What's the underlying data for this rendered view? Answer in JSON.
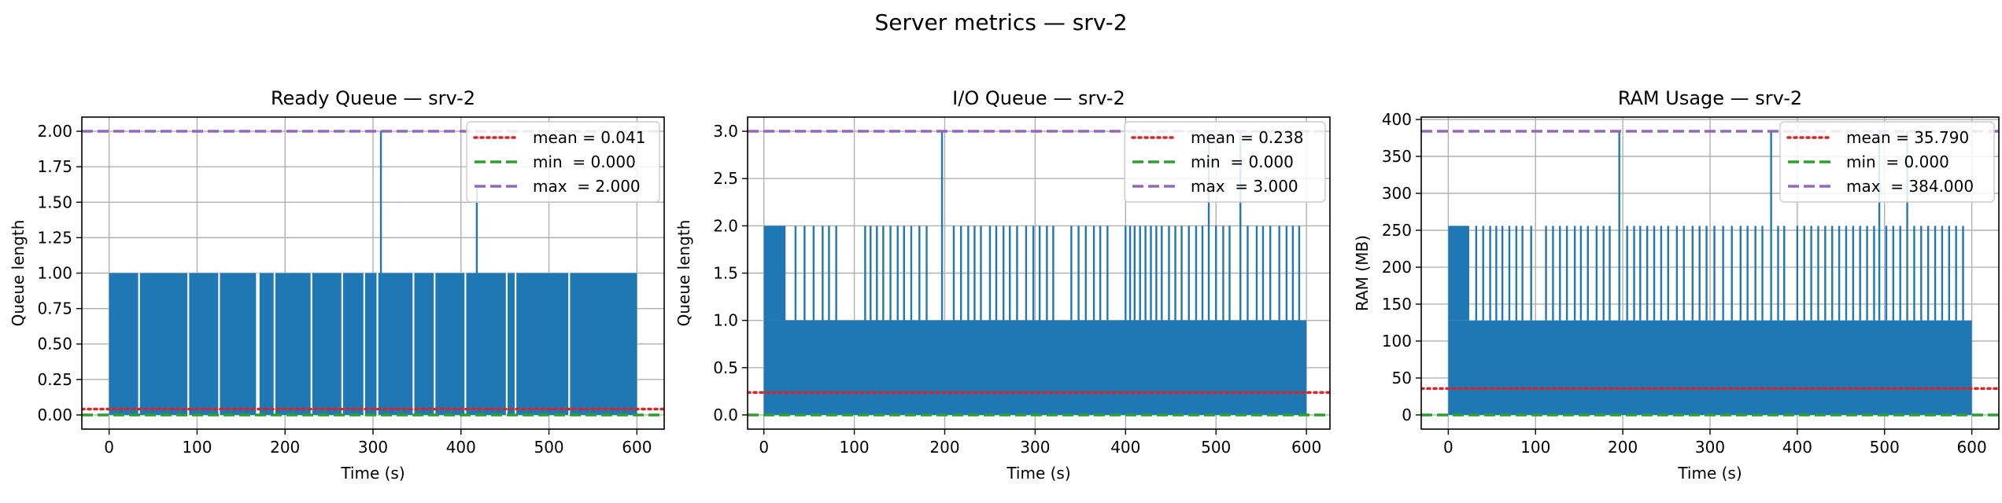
{
  "figure": {
    "title": "Server metrics — srv-2"
  },
  "colors": {
    "signal": "#1f77b4",
    "mean": "#d62728",
    "min": "#2ca02c",
    "max": "#9467bd",
    "grid": "#b0b0b0"
  },
  "chart_data": [
    {
      "type": "line",
      "title": "Ready Queue — srv-2",
      "xlabel": "Time (s)",
      "ylabel": "Queue length",
      "xlim": [
        -31,
        631
      ],
      "ylim": [
        -0.1,
        2.1
      ],
      "xticks": [
        0,
        100,
        200,
        300,
        400,
        500,
        600
      ],
      "xtick_labels": [
        "0",
        "100",
        "200",
        "300",
        "400",
        "500",
        "600"
      ],
      "yticks": [
        0,
        0.25,
        0.5,
        0.75,
        1.0,
        1.25,
        1.5,
        1.75,
        2.0
      ],
      "ytick_labels": [
        "0.00",
        "0.25",
        "0.50",
        "0.75",
        "1.00",
        "1.25",
        "1.50",
        "1.75",
        "2.00"
      ],
      "grid": true,
      "legend_position": "top-right",
      "series": [
        {
          "name": "mean = 0.041",
          "style": "dotted",
          "color": "mean",
          "value": 0.041
        },
        {
          "name": "min  = 0.000",
          "style": "dashed",
          "color": "min",
          "value": 0.0
        },
        {
          "name": "max  = 2.000",
          "style": "dashed",
          "color": "max",
          "value": 2.0
        }
      ],
      "signal": {
        "x_start": 0,
        "x_end": 600,
        "base": 0,
        "level": 1,
        "bands": [
          [
            0,
            600
          ]
        ],
        "gaps": [
          34,
          90,
          125,
          168,
          170,
          188,
          230,
          265,
          290,
          305,
          346,
          370,
          405,
          452,
          462,
          523
        ],
        "dense_regions": [],
        "spikes": [
          [
            309,
            2
          ],
          [
            418,
            1.6
          ]
        ]
      }
    },
    {
      "type": "line",
      "title": "I/O Queue — srv-2",
      "xlabel": "Time (s)",
      "ylabel": "Queue length",
      "xlim": [
        -18,
        626
      ],
      "ylim": [
        -0.15,
        3.15
      ],
      "xticks": [
        0,
        100,
        200,
        300,
        400,
        500,
        600
      ],
      "xtick_labels": [
        "0",
        "100",
        "200",
        "300",
        "400",
        "500",
        "600"
      ],
      "yticks": [
        0,
        0.5,
        1.0,
        1.5,
        2.0,
        2.5,
        3.0
      ],
      "ytick_labels": [
        "0.0",
        "0.5",
        "1.0",
        "1.5",
        "2.0",
        "2.5",
        "3.0"
      ],
      "grid": true,
      "legend_position": "top-right",
      "series": [
        {
          "name": "mean = 0.238",
          "style": "dotted",
          "color": "mean",
          "value": 0.238
        },
        {
          "name": "min  = 0.000",
          "style": "dashed",
          "color": "min",
          "value": 0.0
        },
        {
          "name": "max  = 3.000",
          "style": "dashed",
          "color": "max",
          "value": 3.0
        }
      ],
      "signal": {
        "x_start": 0,
        "x_end": 600,
        "base": 0,
        "level": 1,
        "bands": [
          [
            0,
            600
          ]
        ],
        "gaps": [],
        "dense_regions": [
          [
            0,
            24,
            2
          ]
        ],
        "spikes": [
          [
            35,
            2
          ],
          [
            45,
            2
          ],
          [
            55,
            2
          ],
          [
            65,
            2
          ],
          [
            72,
            2
          ],
          [
            80,
            2
          ],
          [
            112,
            2
          ],
          [
            118,
            2
          ],
          [
            125,
            2
          ],
          [
            132,
            2
          ],
          [
            140,
            2
          ],
          [
            148,
            2
          ],
          [
            155,
            2
          ],
          [
            163,
            2
          ],
          [
            172,
            2
          ],
          [
            180,
            2
          ],
          [
            197,
            3
          ],
          [
            210,
            2
          ],
          [
            218,
            2
          ],
          [
            226,
            2
          ],
          [
            233,
            2
          ],
          [
            240,
            2
          ],
          [
            250,
            2
          ],
          [
            257,
            2
          ],
          [
            265,
            2
          ],
          [
            272,
            2
          ],
          [
            280,
            2
          ],
          [
            290,
            2
          ],
          [
            298,
            2
          ],
          [
            305,
            2
          ],
          [
            313,
            2
          ],
          [
            320,
            2
          ],
          [
            340,
            2
          ],
          [
            348,
            2
          ],
          [
            356,
            2
          ],
          [
            365,
            2
          ],
          [
            372,
            2
          ],
          [
            380,
            2
          ],
          [
            400,
            2
          ],
          [
            405,
            2
          ],
          [
            410,
            2
          ],
          [
            416,
            2
          ],
          [
            422,
            2
          ],
          [
            428,
            2
          ],
          [
            434,
            2
          ],
          [
            440,
            2
          ],
          [
            448,
            2
          ],
          [
            455,
            2
          ],
          [
            462,
            2
          ],
          [
            470,
            2
          ],
          [
            478,
            2
          ],
          [
            485,
            2
          ],
          [
            492,
            3
          ],
          [
            500,
            2
          ],
          [
            508,
            2
          ],
          [
            515,
            2
          ],
          [
            527,
            3
          ],
          [
            535,
            2
          ],
          [
            545,
            2
          ],
          [
            552,
            2
          ],
          [
            560,
            2
          ],
          [
            570,
            2
          ],
          [
            578,
            2
          ],
          [
            585,
            2
          ],
          [
            592,
            2
          ]
        ]
      }
    },
    {
      "type": "line",
      "title": "RAM Usage — srv-2",
      "xlabel": "Time (s)",
      "ylabel": "RAM (MB)",
      "xlim": [
        -31,
        631
      ],
      "ylim": [
        -19.2,
        403.2
      ],
      "xticks": [
        0,
        100,
        200,
        300,
        400,
        500,
        600
      ],
      "xtick_labels": [
        "0",
        "100",
        "200",
        "300",
        "400",
        "500",
        "600"
      ],
      "yticks": [
        0,
        50,
        100,
        150,
        200,
        250,
        300,
        350,
        400
      ],
      "ytick_labels": [
        "0",
        "50",
        "100",
        "150",
        "200",
        "250",
        "300",
        "350",
        "400"
      ],
      "grid": true,
      "legend_position": "top-right",
      "series": [
        {
          "name": "mean = 35.790",
          "style": "dotted",
          "color": "mean",
          "value": 35.79
        },
        {
          "name": "min  = 0.000",
          "style": "dashed",
          "color": "min",
          "value": 0.0
        },
        {
          "name": "max  = 384.000",
          "style": "dashed",
          "color": "max",
          "value": 384.0
        }
      ],
      "signal": {
        "x_start": 0,
        "x_end": 600,
        "base": 0,
        "level": 128,
        "bands": [
          [
            0,
            600
          ]
        ],
        "gaps": [],
        "dense_regions": [
          [
            0,
            24,
            256
          ]
        ],
        "spikes": [
          [
            32,
            256
          ],
          [
            40,
            256
          ],
          [
            48,
            256
          ],
          [
            55,
            256
          ],
          [
            62,
            256
          ],
          [
            70,
            256
          ],
          [
            78,
            256
          ],
          [
            85,
            256
          ],
          [
            95,
            256
          ],
          [
            112,
            256
          ],
          [
            120,
            256
          ],
          [
            128,
            256
          ],
          [
            136,
            256
          ],
          [
            145,
            256
          ],
          [
            152,
            256
          ],
          [
            160,
            256
          ],
          [
            170,
            256
          ],
          [
            178,
            256
          ],
          [
            185,
            256
          ],
          [
            196,
            384
          ],
          [
            205,
            256
          ],
          [
            213,
            256
          ],
          [
            220,
            256
          ],
          [
            228,
            256
          ],
          [
            236,
            256
          ],
          [
            244,
            256
          ],
          [
            252,
            256
          ],
          [
            262,
            256
          ],
          [
            270,
            256
          ],
          [
            280,
            256
          ],
          [
            288,
            256
          ],
          [
            296,
            256
          ],
          [
            305,
            256
          ],
          [
            315,
            256
          ],
          [
            325,
            256
          ],
          [
            335,
            256
          ],
          [
            343,
            256
          ],
          [
            352,
            256
          ],
          [
            360,
            256
          ],
          [
            370,
            384
          ],
          [
            378,
            256
          ],
          [
            385,
            256
          ],
          [
            400,
            256
          ],
          [
            408,
            256
          ],
          [
            416,
            256
          ],
          [
            424,
            256
          ],
          [
            432,
            256
          ],
          [
            440,
            256
          ],
          [
            448,
            256
          ],
          [
            456,
            256
          ],
          [
            464,
            256
          ],
          [
            472,
            256
          ],
          [
            480,
            256
          ],
          [
            488,
            256
          ],
          [
            494,
            384
          ],
          [
            502,
            256
          ],
          [
            510,
            256
          ],
          [
            518,
            256
          ],
          [
            526,
            384
          ],
          [
            534,
            256
          ],
          [
            542,
            256
          ],
          [
            550,
            256
          ],
          [
            558,
            256
          ],
          [
            566,
            256
          ],
          [
            574,
            256
          ],
          [
            582,
            256
          ],
          [
            590,
            256
          ]
        ]
      }
    }
  ]
}
